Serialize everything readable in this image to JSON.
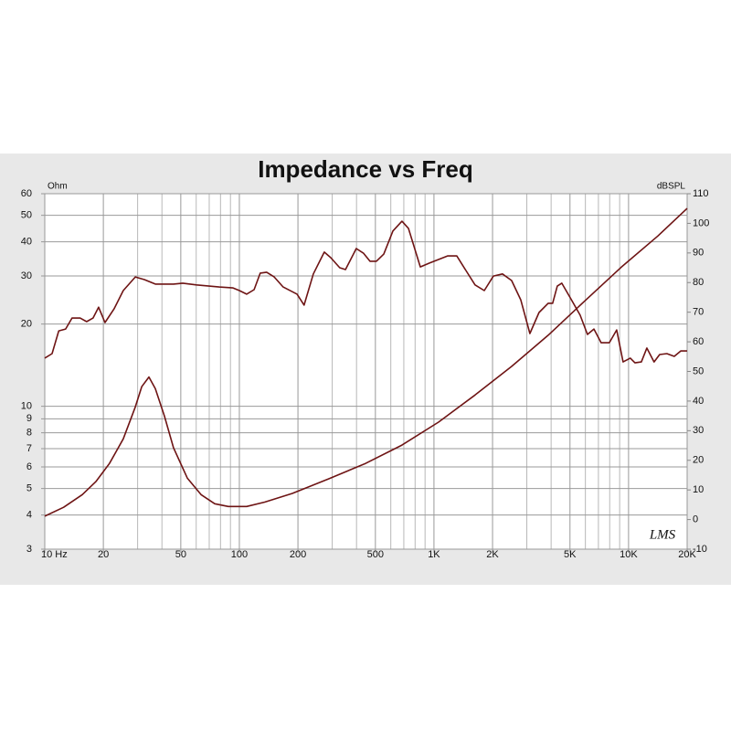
{
  "chart_data": {
    "type": "line",
    "title": "Impedance vs Freq",
    "y_label": "Ohm",
    "y2_label": "dBSPL",
    "watermark": "LMS",
    "xscale": "log",
    "yscale": "log",
    "grid": true,
    "xlim": [
      10,
      20000
    ],
    "ylim": [
      3,
      60
    ],
    "y2lim": [
      -10,
      110
    ],
    "xticks": [
      {
        "value": 10,
        "label": "10 Hz"
      },
      20,
      50,
      100,
      200,
      500,
      {
        "value": 1000,
        "label": "1K"
      },
      {
        "value": 2000,
        "label": "2K"
      },
      {
        "value": 5000,
        "label": "5K"
      },
      {
        "value": 10000,
        "label": "10K"
      },
      {
        "value": 20000,
        "label": "20K"
      }
    ],
    "x_minor_ticks": [
      30,
      40,
      60,
      70,
      80,
      90,
      300,
      400,
      600,
      700,
      800,
      900,
      3000,
      4000,
      6000,
      7000,
      8000,
      9000
    ],
    "yticks": [
      3,
      4,
      5,
      6,
      7,
      8,
      9,
      10,
      20,
      30,
      40,
      50,
      60
    ],
    "y2ticks": [
      -10,
      0,
      10,
      20,
      30,
      40,
      50,
      60,
      70,
      80,
      90,
      100,
      110
    ],
    "series": [
      {
        "color": "#6e1414",
        "axis": "y",
        "x": [
          10,
          12.5,
          15.6,
          18.3,
          21.5,
          25.3,
          29.2,
          31.5,
          34.3,
          37,
          41.2,
          45.9,
          54,
          63.5,
          74.7,
          87.8,
          109,
          135,
          187,
          288,
          445,
          685,
          1055,
          1626,
          2506,
          3864,
          5953,
          9170,
          14130,
          20000
        ],
        "values": [
          3.96,
          4.27,
          4.75,
          5.3,
          6.18,
          7.6,
          9.95,
          11.8,
          12.8,
          11.6,
          9.2,
          7.05,
          5.46,
          4.75,
          4.4,
          4.3,
          4.3,
          4.46,
          4.8,
          5.43,
          6.18,
          7.21,
          8.75,
          11.0,
          14.0,
          18.2,
          24.3,
          32.3,
          42,
          53
        ]
      },
      {
        "color": "#6e1414",
        "axis": "y2",
        "x": [
          10,
          10.9,
          11.8,
          12.8,
          13.8,
          15.2,
          16.4,
          17.7,
          18.9,
          20.4,
          22.7,
          25.3,
          29.2,
          32.5,
          37,
          45.9,
          51.2,
          60.2,
          78.8,
          92.7,
          100,
          109,
          119,
          128,
          138,
          151,
          168,
          198,
          215,
          240,
          273,
          295,
          328,
          351,
          399,
          435,
          469,
          506,
          552,
          615,
          685,
          739,
          851,
          948,
          1175,
          1310,
          1459,
          1626,
          1813,
          2020,
          2249,
          2506,
          2793,
          3112,
          3467,
          3864,
          4074,
          4305,
          4539,
          5058,
          5636,
          6151,
          6637,
          7228,
          7962,
          8690,
          9376,
          10210,
          10790,
          11640,
          12420,
          13520,
          14450,
          15740,
          17180,
          18540,
          20000
        ],
        "values": [
          54.5,
          56.0,
          63.7,
          64.3,
          68.0,
          68.0,
          66.8,
          68.0,
          71.7,
          66.5,
          71.1,
          77.3,
          81.9,
          81.0,
          79.5,
          79.5,
          79.8,
          79.2,
          78.5,
          78.2,
          77.3,
          76.1,
          77.6,
          83.2,
          83.5,
          81.9,
          78.5,
          76.1,
          72.4,
          82.9,
          90.3,
          88.4,
          85.0,
          84.4,
          91.5,
          89.9,
          87.2,
          87.2,
          89.6,
          97.4,
          100.7,
          98.3,
          85.3,
          86.6,
          89.0,
          89.0,
          84.1,
          79.2,
          77.3,
          82.2,
          82.9,
          80.7,
          74.2,
          62.8,
          69.9,
          73.0,
          73.0,
          78.8,
          79.8,
          74.5,
          69.0,
          62.5,
          64.3,
          59.7,
          59.7,
          64.0,
          53.2,
          54.5,
          52.9,
          53.2,
          57.9,
          53.2,
          55.7,
          56.0,
          55.1,
          56.9,
          56.9
        ]
      }
    ]
  }
}
